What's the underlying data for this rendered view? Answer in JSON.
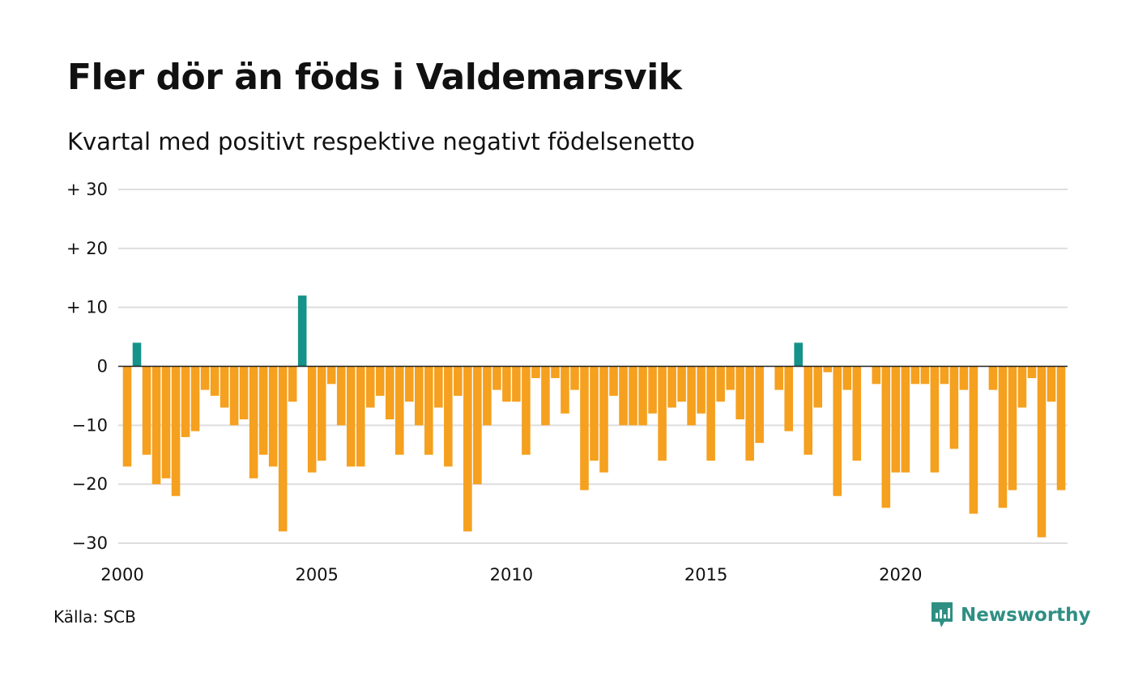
{
  "chart_data": {
    "type": "bar",
    "title": "Fler dör än föds i Valdemarsvik",
    "subtitle": "Kvartal med positivt respektive negativt födelsenetto",
    "xlabel": "",
    "ylabel": "",
    "x_start": 2000,
    "x_end": 2024.75,
    "ylim": [
      -30,
      30
    ],
    "yticks": [
      30,
      20,
      10,
      0,
      -10,
      -20,
      -30
    ],
    "ytick_labels": [
      "+ 30",
      "+ 20",
      "+ 10",
      "0",
      "−10",
      "−20",
      "−30"
    ],
    "xticks": [
      2000,
      2005,
      2010,
      2015,
      2020
    ],
    "xtick_labels": [
      "2000",
      "2005",
      "2010",
      "2015",
      "2020"
    ],
    "grid": true,
    "colors": {
      "positive": "#15928a",
      "negative": "#f5a01e",
      "grid": "#dedede",
      "axis": "#222222"
    },
    "quarters_start": "2000 Q1",
    "values": [
      -17,
      4,
      -15,
      -20,
      -19,
      -22,
      -12,
      -11,
      -4,
      -5,
      -7,
      -10,
      -9,
      -19,
      -15,
      -17,
      -28,
      -6,
      12,
      -18,
      -16,
      -3,
      -10,
      -17,
      -17,
      -7,
      -5,
      -9,
      -15,
      -6,
      -10,
      -15,
      -7,
      -17,
      -5,
      -28,
      -20,
      -10,
      -4,
      -6,
      -6,
      -15,
      -2,
      -10,
      -2,
      -8,
      -4,
      -21,
      -16,
      -18,
      -5,
      -10,
      -10,
      -10,
      -8,
      -16,
      -7,
      -6,
      -10,
      -8,
      -16,
      -6,
      -4,
      -9,
      -16,
      -13,
      0,
      -4,
      -11,
      4,
      -15,
      -7,
      -1,
      -22,
      -4,
      -16,
      0,
      -3,
      -24,
      -18,
      -18,
      -3,
      -3,
      -18,
      -3,
      -14,
      -4,
      -25,
      0,
      -4,
      -24,
      -21,
      -7,
      -2,
      -29,
      -6,
      -21
    ]
  },
  "source": "Källa: SCB",
  "brand": {
    "name": "Newsworthy",
    "icon": "newsworthy-logo-icon"
  }
}
